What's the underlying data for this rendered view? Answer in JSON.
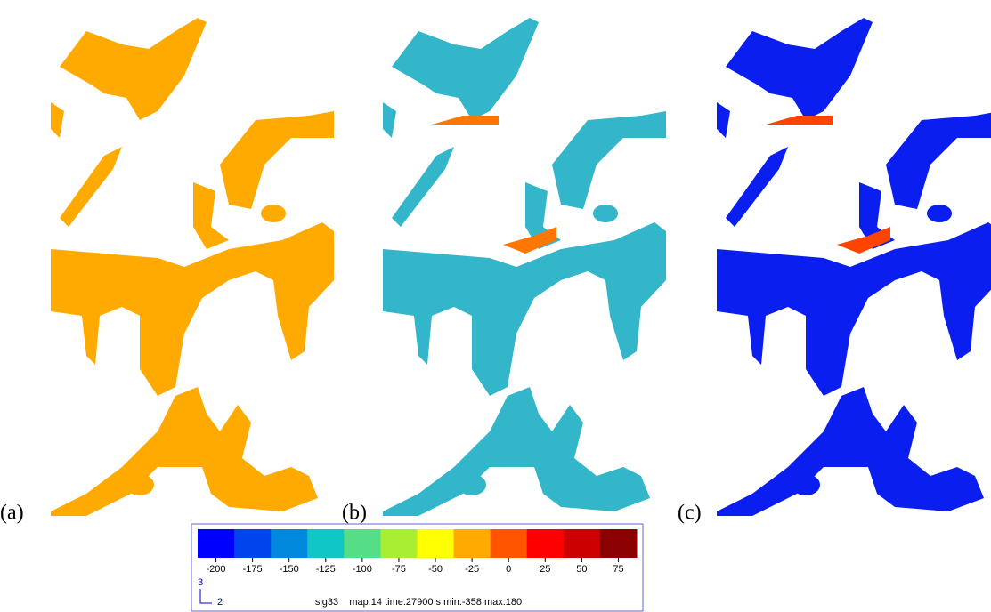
{
  "panels": [
    {
      "label": "(a)"
    },
    {
      "label": "(b)"
    },
    {
      "label": "(c)"
    }
  ],
  "colorbar": {
    "colors": [
      "#0000ff",
      "#0044ee",
      "#0088dd",
      "#11c6c6",
      "#55dd88",
      "#aaee33",
      "#ffff00",
      "#ffaa00",
      "#ff5500",
      "#ff0000",
      "#cc0000",
      "#8b0000"
    ],
    "ticks": [
      -200,
      -175,
      -150,
      -125,
      -100,
      -75,
      -50,
      -25,
      0,
      25,
      50,
      75
    ],
    "axes": {
      "vertical": "3",
      "horizontal": "2"
    },
    "caption": "sig33    map:14 time:27900 s min:-358 max:180"
  }
}
